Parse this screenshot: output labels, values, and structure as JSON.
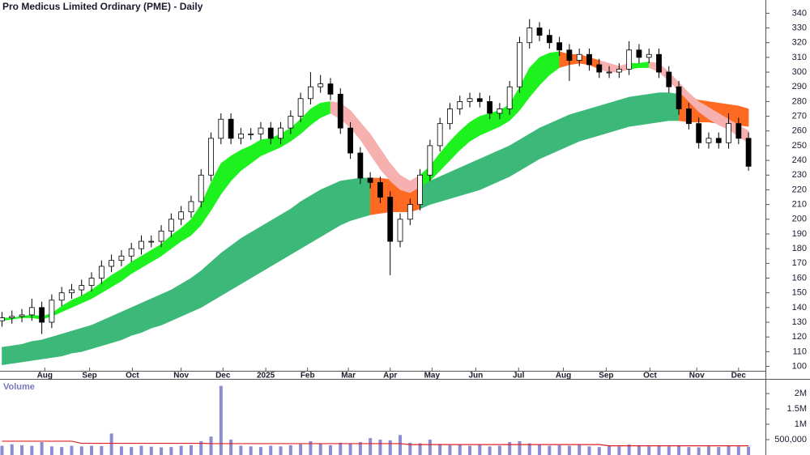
{
  "chart_data": {
    "type": "candlestick",
    "title": "Pro Medicus Limited Ordinary (PME) - Daily",
    "open": [
      131,
      133,
      134,
      135,
      140,
      130,
      145,
      150,
      152,
      155,
      160,
      168,
      172,
      175,
      180,
      185,
      185,
      192,
      200,
      205,
      212,
      230,
      255,
      268,
      255,
      258,
      258,
      262,
      255,
      262,
      270,
      282,
      290,
      292,
      285,
      262,
      245,
      228,
      225,
      215,
      185,
      200,
      210,
      230,
      250,
      265,
      275,
      280,
      282,
      280,
      272,
      275,
      290,
      320,
      330,
      325,
      320,
      315,
      308,
      312,
      305,
      300,
      300,
      302,
      315,
      310,
      312,
      300,
      290,
      275,
      265,
      252,
      255,
      252,
      265,
      255
    ],
    "high": [
      137,
      138,
      139,
      146,
      144,
      149,
      154,
      156,
      159,
      164,
      172,
      176,
      179,
      184,
      189,
      189,
      196,
      204,
      209,
      216,
      234,
      259,
      272,
      272,
      262,
      262,
      266,
      266,
      266,
      274,
      286,
      300,
      298,
      296,
      289,
      266,
      249,
      232,
      229,
      219,
      204,
      214,
      234,
      254,
      269,
      279,
      284,
      286,
      286,
      284,
      279,
      294,
      324,
      336,
      334,
      329,
      324,
      319,
      316,
      316,
      309,
      304,
      306,
      321,
      319,
      316,
      316,
      304,
      294,
      279,
      269,
      259,
      259,
      272,
      269,
      259
    ],
    "low": [
      127,
      129,
      130,
      131,
      122,
      126,
      141,
      146,
      148,
      151,
      156,
      164,
      168,
      171,
      176,
      181,
      181,
      188,
      196,
      201,
      208,
      226,
      251,
      251,
      251,
      254,
      254,
      251,
      251,
      258,
      266,
      278,
      286,
      281,
      258,
      241,
      224,
      221,
      211,
      162,
      181,
      196,
      206,
      226,
      246,
      261,
      271,
      276,
      276,
      268,
      268,
      271,
      286,
      316,
      321,
      316,
      311,
      294,
      304,
      301,
      296,
      296,
      296,
      298,
      306,
      306,
      296,
      286,
      271,
      261,
      248,
      248,
      248,
      248,
      251,
      233
    ],
    "close": [
      133,
      134,
      135,
      140,
      130,
      145,
      150,
      152,
      155,
      160,
      168,
      172,
      175,
      180,
      185,
      185,
      192,
      200,
      205,
      212,
      230,
      255,
      268,
      255,
      258,
      258,
      262,
      255,
      262,
      270,
      282,
      290,
      292,
      285,
      262,
      245,
      228,
      225,
      215,
      185,
      200,
      210,
      230,
      250,
      265,
      275,
      280,
      282,
      280,
      272,
      275,
      290,
      320,
      330,
      325,
      320,
      315,
      308,
      312,
      305,
      300,
      300,
      302,
      315,
      310,
      312,
      300,
      290,
      275,
      265,
      252,
      255,
      252,
      265,
      255,
      236
    ],
    "up_color": "#ffffff",
    "down_color": "#000000",
    "xlim": [
      -0.2,
      76.7
    ],
    "xticks": [
      {
        "value": 4.3,
        "label": "Aug"
      },
      {
        "value": 8.8,
        "label": "Sep"
      },
      {
        "value": 13.1,
        "label": "Oct"
      },
      {
        "value": 18,
        "label": "Nov"
      },
      {
        "value": 22.2,
        "label": "Dec"
      },
      {
        "value": 26.5,
        "label": "2025"
      },
      {
        "value": 30.7,
        "label": "Feb"
      },
      {
        "value": 34.8,
        "label": "Mar"
      },
      {
        "value": 39,
        "label": "Apr"
      },
      {
        "value": 43.2,
        "label": "May"
      },
      {
        "value": 47.6,
        "label": "Jun"
      },
      {
        "value": 51.9,
        "label": "Jul"
      },
      {
        "value": 56.4,
        "label": "Aug"
      },
      {
        "value": 60.7,
        "label": "Sep"
      },
      {
        "value": 65.1,
        "label": "Oct"
      },
      {
        "value": 69.8,
        "label": "Nov"
      },
      {
        "value": 74,
        "label": "Dec"
      }
    ],
    "ylim": [
      97,
      349
    ],
    "yticks": [
      100,
      110,
      120,
      130,
      140,
      150,
      160,
      170,
      180,
      190,
      200,
      210,
      220,
      230,
      240,
      250,
      260,
      270,
      280,
      290,
      300,
      310,
      320,
      330,
      340
    ],
    "ribbons": [
      {
        "upper": [
          113,
          114,
          115,
          117,
          118,
          120,
          122,
          124,
          126,
          128,
          131,
          134,
          137,
          140,
          143,
          146,
          149,
          152,
          156,
          160,
          165,
          171,
          177,
          182,
          187,
          191,
          195,
          199,
          203,
          207,
          212,
          216,
          220,
          223,
          226,
          227,
          228,
          228,
          228,
          227,
          225,
          224,
          224,
          226,
          229,
          232,
          235,
          238,
          241,
          244,
          247,
          250,
          254,
          258,
          262,
          265,
          268,
          271,
          273,
          275,
          277,
          279,
          281,
          283,
          284,
          285,
          286,
          286,
          285,
          283,
          281,
          280,
          279,
          278,
          277,
          275
        ],
        "lower": [
          101,
          102,
          103,
          104,
          105,
          106,
          107,
          109,
          110,
          112,
          114,
          116,
          118,
          121,
          123,
          126,
          128,
          131,
          134,
          137,
          140,
          144,
          148,
          152,
          156,
          160,
          164,
          168,
          172,
          176,
          180,
          184,
          188,
          192,
          196,
          199,
          201,
          203,
          204,
          205,
          205,
          205,
          207,
          210,
          212,
          214,
          216,
          218,
          220,
          223,
          226,
          229,
          233,
          237,
          241,
          244,
          247,
          250,
          253,
          255,
          257,
          259,
          261,
          263,
          264,
          265,
          266,
          267,
          267,
          266,
          266,
          266,
          265,
          265,
          264,
          263
        ],
        "segments": [
          {
            "start": 0,
            "end": 37,
            "color": "#3cb878"
          },
          {
            "start": 37,
            "end": 42,
            "color": "#ff6a22"
          },
          {
            "start": 42,
            "end": 68,
            "color": "#3cb878"
          },
          {
            "start": 68,
            "end": 75,
            "color": "#ff6a22"
          }
        ]
      },
      {
        "upper": [
          133,
          133,
          134,
          135,
          134,
          136,
          141,
          145,
          148,
          152,
          157,
          162,
          166,
          171,
          175,
          179,
          183,
          189,
          194,
          200,
          210,
          225,
          238,
          243,
          247,
          250,
          254,
          255,
          258,
          262,
          268,
          275,
          279,
          280,
          279,
          274,
          266,
          258,
          248,
          238,
          230,
          226,
          230,
          236,
          245,
          253,
          260,
          266,
          270,
          272,
          274,
          278,
          290,
          303,
          310,
          313,
          314,
          312,
          312,
          310,
          308,
          306,
          304,
          306,
          306,
          307,
          306,
          300,
          293,
          286,
          280,
          276,
          272,
          268,
          264,
          260
        ],
        "lower": [
          131,
          132,
          133,
          133,
          132,
          134,
          137,
          140,
          143,
          146,
          150,
          154,
          158,
          163,
          167,
          171,
          175,
          180,
          185,
          189,
          196,
          206,
          217,
          226,
          233,
          238,
          243,
          246,
          249,
          253,
          258,
          264,
          269,
          272,
          268,
          262,
          254,
          244,
          234,
          226,
          220,
          218,
          222,
          226,
          233,
          240,
          247,
          253,
          257,
          260,
          263,
          267,
          274,
          283,
          291,
          298,
          303,
          305,
          306,
          305,
          302,
          300,
          300,
          302,
          303,
          303,
          300,
          294,
          287,
          280,
          273,
          268,
          264,
          261,
          256,
          252
        ],
        "segments": [
          {
            "start": 0,
            "end": 33,
            "color": "#1ef21e"
          },
          {
            "start": 33,
            "end": 42,
            "color": "#f7b0b0"
          },
          {
            "start": 42,
            "end": 56,
            "color": "#1ef21e"
          },
          {
            "start": 56,
            "end": 60,
            "color": "#ff6a22"
          },
          {
            "start": 60,
            "end": 63,
            "color": "#f7b0b0"
          },
          {
            "start": 63,
            "end": 65,
            "color": "#1ef21e"
          },
          {
            "start": 65,
            "end": 75,
            "color": "#f7b0b0"
          }
        ]
      }
    ],
    "volume": {
      "label": "Volume",
      "color": "#8c8cd2",
      "values": [
        300000,
        350000,
        320000,
        300000,
        420000,
        280000,
        260000,
        300000,
        280000,
        300000,
        290000,
        700000,
        280000,
        260000,
        300000,
        270000,
        250000,
        260000,
        300000,
        320000,
        450000,
        600000,
        2250000,
        500000,
        300000,
        280000,
        260000,
        300000,
        280000,
        320000,
        350000,
        450000,
        380000,
        320000,
        400000,
        380000,
        420000,
        550000,
        500000,
        480000,
        650000,
        400000,
        380000,
        500000,
        360000,
        320000,
        350000,
        300000,
        330000,
        280000,
        300000,
        420000,
        450000,
        380000,
        350000,
        300000,
        320000,
        300000,
        330000,
        280000,
        260000,
        300000,
        280000,
        340000,
        300000,
        280000,
        300000,
        280000,
        300000,
        260000,
        250000,
        280000,
        260000,
        300000,
        280000,
        270000
      ],
      "average": {
        "color": "#e02020",
        "values": [
          450000,
          450000,
          450000,
          450000,
          450000,
          450000,
          450000,
          450000,
          380000,
          380000,
          380000,
          380000,
          380000,
          380000,
          380000,
          380000,
          380000,
          380000,
          380000,
          380000,
          380000,
          370000,
          370000,
          370000,
          370000,
          370000,
          370000,
          370000,
          370000,
          370000,
          370000,
          370000,
          370000,
          370000,
          370000,
          370000,
          370000,
          370000,
          370000,
          370000,
          370000,
          340000,
          340000,
          340000,
          340000,
          340000,
          340000,
          340000,
          340000,
          340000,
          340000,
          340000,
          340000,
          340000,
          340000,
          340000,
          340000,
          340000,
          340000,
          340000,
          340000,
          300000,
          300000,
          300000,
          300000,
          300000,
          300000,
          300000,
          300000,
          300000,
          300000,
          300000,
          300000,
          300000,
          300000,
          300000
        ]
      },
      "ylim": [
        0,
        2450000
      ],
      "yticks": [
        {
          "value": 500000,
          "label": "500,000"
        },
        {
          "value": 1000000,
          "label": "1M"
        },
        {
          "value": 1500000,
          "label": "1.5M"
        },
        {
          "value": 2000000,
          "label": "2M"
        }
      ]
    }
  }
}
